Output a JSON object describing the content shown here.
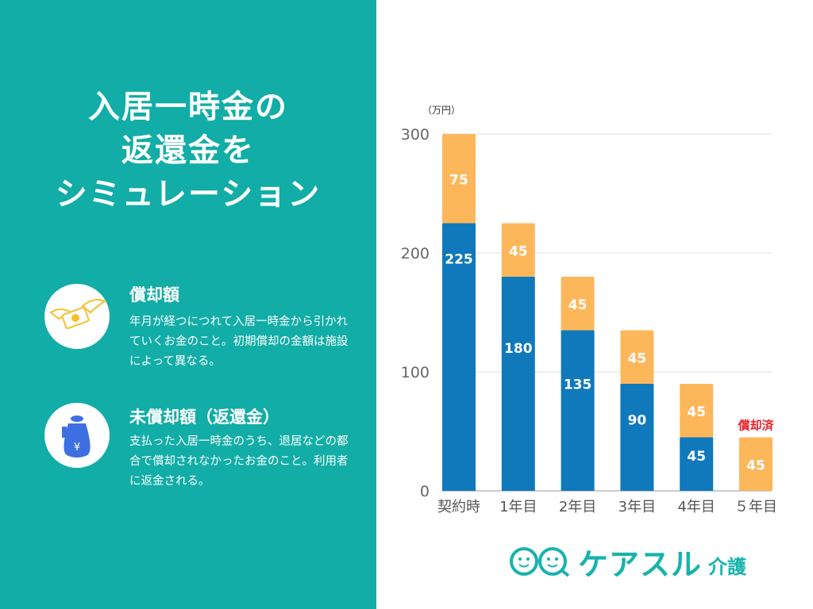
{
  "title_lines": [
    "入居一時金の",
    "返還金を",
    "シミュレーション"
  ],
  "sections": [
    {
      "heading": "償却額",
      "icon": "flying-money-icon",
      "body": "年月が経つにつれて入居一時金から引かれていくお金のこと。初期償却の金額は施設によって異なる。"
    },
    {
      "heading": "未償却額（返還金）",
      "icon": "money-bag-hand-icon",
      "body": "支払った入居一時金のうち、退居などの都合で償却されなかったお金のこと。利用者に返金される。"
    }
  ],
  "logo": {
    "text": "ケアスル",
    "sub": "介護"
  },
  "colors": {
    "panel": "#12ADA6",
    "unamortized": "#0F79BC",
    "amortized": "#FDB75B",
    "note": "#E8232B"
  },
  "chart_data": {
    "type": "bar",
    "stacked": true,
    "ylabel": "（万円）",
    "ylim": [
      0,
      300
    ],
    "yticks": [
      0,
      100,
      200,
      300
    ],
    "grid": true,
    "categories": [
      "契約時",
      "1年目",
      "2年目",
      "3年目",
      "4年目",
      "５年目"
    ],
    "series": [
      {
        "key": "unamortized",
        "values": [
          225,
          180,
          135,
          90,
          45,
          0
        ]
      },
      {
        "key": "amortized",
        "values": [
          75,
          45,
          45,
          45,
          45,
          45
        ]
      }
    ],
    "annotations": [
      {
        "category": "５年目",
        "text": "償却済"
      }
    ]
  }
}
